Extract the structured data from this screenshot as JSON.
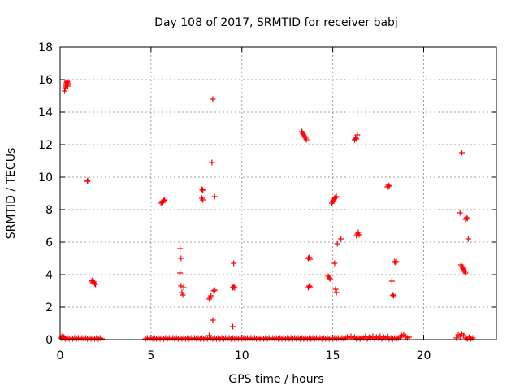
{
  "chart_data": {
    "type": "scatter",
    "title": "Day 108 of 2017, SRMTID for receiver babj",
    "xlabel": "GPS time / hours",
    "ylabel": "SRMTID / TECUs",
    "xlim": [
      0,
      24
    ],
    "ylim": [
      0,
      18
    ],
    "xticks": [
      0,
      5,
      10,
      15,
      20
    ],
    "yticks": [
      0,
      2,
      4,
      6,
      8,
      10,
      12,
      14,
      16,
      18
    ],
    "grid": true,
    "marker": "+",
    "color": "#ff0000",
    "series": [
      {
        "name": "SRMTID",
        "points": [
          [
            0.05,
            0.1
          ],
          [
            0.1,
            0.2
          ],
          [
            0.15,
            0.05
          ],
          [
            0.2,
            0.15
          ],
          [
            0.25,
            0.1
          ],
          [
            0.3,
            0.05
          ],
          [
            0.4,
            0.1
          ],
          [
            0.5,
            0.05
          ],
          [
            0.6,
            0.1
          ],
          [
            0.7,
            0.05
          ],
          [
            0.8,
            0.1
          ],
          [
            0.9,
            0.05
          ],
          [
            1.0,
            0.1
          ],
          [
            1.1,
            0.05
          ],
          [
            1.2,
            0.1
          ],
          [
            1.3,
            0.05
          ],
          [
            1.4,
            0.1
          ],
          [
            1.5,
            0.05
          ],
          [
            1.6,
            0.1
          ],
          [
            1.7,
            0.05
          ],
          [
            1.8,
            0.1
          ],
          [
            1.9,
            0.05
          ],
          [
            2.0,
            0.1
          ],
          [
            2.1,
            0.05
          ],
          [
            2.2,
            0.1
          ],
          [
            2.3,
            0.05
          ],
          [
            0.25,
            15.3
          ],
          [
            0.28,
            15.5
          ],
          [
            0.3,
            15.6
          ],
          [
            0.32,
            15.7
          ],
          [
            0.35,
            15.8
          ],
          [
            0.38,
            15.9
          ],
          [
            0.4,
            15.85
          ],
          [
            0.42,
            15.6
          ],
          [
            0.45,
            15.75
          ],
          [
            1.5,
            9.75
          ],
          [
            1.52,
            9.8
          ],
          [
            1.75,
            3.6
          ],
          [
            1.8,
            3.5
          ],
          [
            1.85,
            3.55
          ],
          [
            1.9,
            3.45
          ],
          [
            1.95,
            3.4
          ],
          [
            1.78,
            3.65
          ],
          [
            4.7,
            0.05
          ],
          [
            4.8,
            0.1
          ],
          [
            4.9,
            0.05
          ],
          [
            5.0,
            0.1
          ],
          [
            5.1,
            0.05
          ],
          [
            5.2,
            0.1
          ],
          [
            5.3,
            0.05
          ],
          [
            5.4,
            0.1
          ],
          [
            5.5,
            0.05
          ],
          [
            5.6,
            0.1
          ],
          [
            5.7,
            0.05
          ],
          [
            5.8,
            0.1
          ],
          [
            5.9,
            0.05
          ],
          [
            6.0,
            0.1
          ],
          [
            6.1,
            0.05
          ],
          [
            6.2,
            0.1
          ],
          [
            6.3,
            0.05
          ],
          [
            6.4,
            0.1
          ],
          [
            6.5,
            0.05
          ],
          [
            6.6,
            0.1
          ],
          [
            6.7,
            0.05
          ],
          [
            6.8,
            0.1
          ],
          [
            6.9,
            0.05
          ],
          [
            7.0,
            0.1
          ],
          [
            7.1,
            0.05
          ],
          [
            7.2,
            0.1
          ],
          [
            7.3,
            0.05
          ],
          [
            7.4,
            0.1
          ],
          [
            7.5,
            0.05
          ],
          [
            7.6,
            0.1
          ],
          [
            7.7,
            0.05
          ],
          [
            7.8,
            0.1
          ],
          [
            7.9,
            0.05
          ],
          [
            8.0,
            0.1
          ],
          [
            8.1,
            0.05
          ],
          [
            8.2,
            0.25
          ],
          [
            8.3,
            0.1
          ],
          [
            8.4,
            0.05
          ],
          [
            8.5,
            0.1
          ],
          [
            8.6,
            0.05
          ],
          [
            8.7,
            0.1
          ],
          [
            8.8,
            0.05
          ],
          [
            8.9,
            0.1
          ],
          [
            9.0,
            0.05
          ],
          [
            9.1,
            0.1
          ],
          [
            9.2,
            0.05
          ],
          [
            9.3,
            0.1
          ],
          [
            9.4,
            0.05
          ],
          [
            9.5,
            0.1
          ],
          [
            9.6,
            0.05
          ],
          [
            9.7,
            0.1
          ],
          [
            9.8,
            0.05
          ],
          [
            9.9,
            0.1
          ],
          [
            10.0,
            0.05
          ],
          [
            10.1,
            0.1
          ],
          [
            10.2,
            0.05
          ],
          [
            10.3,
            0.1
          ],
          [
            10.4,
            0.05
          ],
          [
            10.5,
            0.1
          ],
          [
            10.6,
            0.05
          ],
          [
            10.7,
            0.1
          ],
          [
            10.8,
            0.05
          ],
          [
            10.9,
            0.1
          ],
          [
            11.0,
            0.05
          ],
          [
            11.1,
            0.1
          ],
          [
            11.2,
            0.05
          ],
          [
            11.3,
            0.1
          ],
          [
            11.4,
            0.05
          ],
          [
            11.5,
            0.1
          ],
          [
            11.6,
            0.05
          ],
          [
            11.7,
            0.1
          ],
          [
            11.8,
            0.05
          ],
          [
            11.9,
            0.1
          ],
          [
            12.0,
            0.05
          ],
          [
            12.1,
            0.1
          ],
          [
            12.2,
            0.05
          ],
          [
            12.3,
            0.1
          ],
          [
            12.4,
            0.05
          ],
          [
            12.5,
            0.1
          ],
          [
            12.6,
            0.05
          ],
          [
            12.7,
            0.1
          ],
          [
            12.8,
            0.05
          ],
          [
            12.9,
            0.1
          ],
          [
            13.0,
            0.05
          ],
          [
            13.1,
            0.1
          ],
          [
            13.2,
            0.05
          ],
          [
            13.3,
            0.1
          ],
          [
            13.4,
            0.05
          ],
          [
            13.5,
            0.1
          ],
          [
            13.6,
            0.05
          ],
          [
            13.7,
            0.1
          ],
          [
            13.8,
            0.05
          ],
          [
            13.9,
            0.1
          ],
          [
            14.0,
            0.05
          ],
          [
            14.1,
            0.1
          ],
          [
            14.2,
            0.05
          ],
          [
            14.3,
            0.1
          ],
          [
            14.4,
            0.05
          ],
          [
            14.5,
            0.1
          ],
          [
            14.6,
            0.05
          ],
          [
            14.7,
            0.1
          ],
          [
            14.8,
            0.05
          ],
          [
            14.9,
            0.1
          ],
          [
            15.0,
            0.05
          ],
          [
            15.1,
            0.1
          ],
          [
            15.2,
            0.05
          ],
          [
            15.3,
            0.1
          ],
          [
            15.4,
            0.05
          ],
          [
            15.5,
            0.1
          ],
          [
            15.6,
            0.05
          ],
          [
            15.7,
            0.1
          ],
          [
            15.8,
            0.15
          ],
          [
            15.9,
            0.1
          ],
          [
            16.0,
            0.2
          ],
          [
            16.1,
            0.1
          ],
          [
            16.2,
            0.15
          ],
          [
            16.3,
            0.05
          ],
          [
            16.4,
            0.1
          ],
          [
            16.5,
            0.05
          ],
          [
            16.6,
            0.15
          ],
          [
            16.7,
            0.1
          ],
          [
            16.8,
            0.2
          ],
          [
            16.9,
            0.05
          ],
          [
            17.0,
            0.15
          ],
          [
            17.1,
            0.1
          ],
          [
            17.2,
            0.2
          ],
          [
            17.3,
            0.05
          ],
          [
            17.4,
            0.15
          ],
          [
            17.5,
            0.1
          ],
          [
            17.6,
            0.2
          ],
          [
            17.7,
            0.05
          ],
          [
            17.8,
            0.15
          ],
          [
            17.9,
            0.1
          ],
          [
            18.0,
            0.2
          ],
          [
            18.1,
            0.05
          ],
          [
            18.2,
            0.1
          ],
          [
            18.3,
            0.05
          ],
          [
            18.4,
            0.1
          ],
          [
            18.5,
            0.05
          ],
          [
            18.6,
            0.1
          ],
          [
            18.7,
            0.15
          ],
          [
            18.8,
            0.25
          ],
          [
            18.9,
            0.3
          ],
          [
            19.0,
            0.2
          ],
          [
            19.1,
            0.1
          ],
          [
            19.2,
            0.15
          ],
          [
            5.55,
            8.4
          ],
          [
            5.6,
            8.5
          ],
          [
            5.65,
            8.45
          ],
          [
            5.7,
            8.55
          ],
          [
            5.75,
            8.6
          ],
          [
            6.6,
            5.6
          ],
          [
            6.65,
            5.0
          ],
          [
            6.6,
            4.1
          ],
          [
            6.65,
            3.3
          ],
          [
            6.7,
            2.9
          ],
          [
            6.75,
            2.75
          ],
          [
            6.8,
            3.2
          ],
          [
            7.8,
            9.25
          ],
          [
            7.85,
            9.2
          ],
          [
            7.8,
            8.7
          ],
          [
            7.85,
            8.6
          ],
          [
            8.2,
            2.5
          ],
          [
            8.25,
            2.6
          ],
          [
            8.3,
            2.7
          ],
          [
            8.45,
            3.0
          ],
          [
            8.5,
            3.05
          ],
          [
            8.35,
            10.9
          ],
          [
            8.4,
            14.8
          ],
          [
            8.5,
            8.8
          ],
          [
            8.4,
            1.2
          ],
          [
            9.5,
            3.2
          ],
          [
            9.55,
            3.25
          ],
          [
            9.6,
            3.2
          ],
          [
            9.55,
            4.7
          ],
          [
            9.5,
            0.8
          ],
          [
            13.3,
            12.8
          ],
          [
            13.35,
            12.7
          ],
          [
            13.4,
            12.6
          ],
          [
            13.45,
            12.5
          ],
          [
            13.5,
            12.4
          ],
          [
            13.55,
            12.3
          ],
          [
            13.65,
            5.0
          ],
          [
            13.7,
            5.05
          ],
          [
            13.75,
            4.95
          ],
          [
            13.65,
            3.2
          ],
          [
            13.7,
            3.3
          ],
          [
            13.75,
            3.25
          ],
          [
            14.75,
            3.9
          ],
          [
            14.8,
            3.8
          ],
          [
            14.85,
            3.75
          ],
          [
            14.95,
            8.4
          ],
          [
            15.0,
            8.5
          ],
          [
            15.05,
            8.6
          ],
          [
            15.1,
            8.7
          ],
          [
            15.15,
            8.75
          ],
          [
            15.2,
            8.8
          ],
          [
            15.1,
            4.7
          ],
          [
            15.15,
            3.1
          ],
          [
            15.2,
            2.9
          ],
          [
            15.25,
            5.9
          ],
          [
            15.45,
            6.2
          ],
          [
            16.2,
            12.3
          ],
          [
            16.25,
            12.4
          ],
          [
            16.3,
            12.35
          ],
          [
            16.35,
            12.6
          ],
          [
            16.3,
            6.4
          ],
          [
            16.35,
            6.5
          ],
          [
            16.4,
            6.6
          ],
          [
            16.45,
            6.45
          ],
          [
            18.0,
            9.4
          ],
          [
            18.05,
            9.5
          ],
          [
            18.1,
            9.45
          ],
          [
            18.25,
            3.6
          ],
          [
            18.3,
            2.75
          ],
          [
            18.35,
            2.7
          ],
          [
            18.4,
            4.8
          ],
          [
            18.45,
            4.75
          ],
          [
            18.5,
            4.8
          ],
          [
            21.8,
            0.1
          ],
          [
            21.9,
            0.3
          ],
          [
            22.0,
            0.2
          ],
          [
            22.1,
            0.35
          ],
          [
            22.2,
            0.25
          ],
          [
            22.3,
            0.1
          ],
          [
            22.4,
            0.05
          ],
          [
            22.5,
            0.15
          ],
          [
            22.6,
            0.05
          ],
          [
            22.7,
            0.1
          ],
          [
            22.1,
            11.5
          ],
          [
            22.0,
            7.8
          ],
          [
            22.3,
            7.4
          ],
          [
            22.35,
            7.5
          ],
          [
            22.4,
            7.45
          ],
          [
            22.45,
            6.2
          ],
          [
            22.05,
            4.6
          ],
          [
            22.1,
            4.5
          ],
          [
            22.15,
            4.4
          ],
          [
            22.2,
            4.3
          ],
          [
            22.25,
            4.2
          ],
          [
            22.3,
            4.1
          ]
        ]
      }
    ]
  }
}
